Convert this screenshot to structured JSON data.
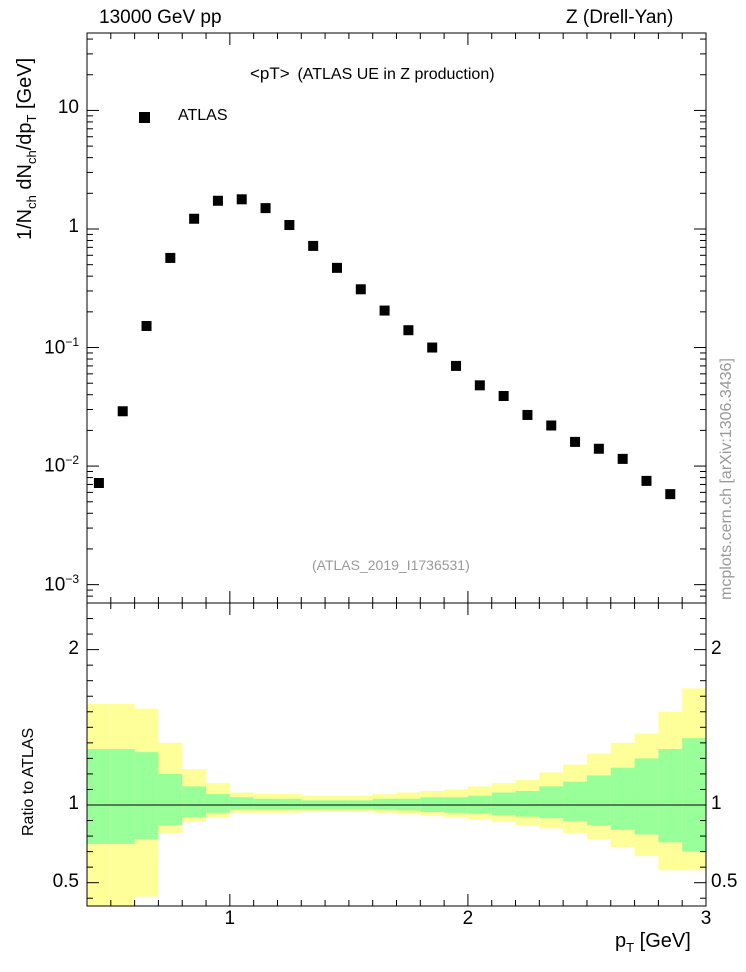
{
  "header": {
    "left": "13000 GeV pp",
    "right": "Z (Drell-Yan)"
  },
  "watermark": "mcplots.cern.ch [arXiv:1306.3436]",
  "chart_data": [
    {
      "type": "scatter",
      "panel": "main",
      "title_main": "<pT>",
      "title_sub": "(ATLAS UE in Z production)",
      "analysis_label": "(ATLAS_2019_I1736531)",
      "ylabel": "1/N_ch dN_ch/dp_T [GeV]",
      "yscale": "log",
      "ylim": [
        0.0007,
        45
      ],
      "xlim": [
        0.4,
        3.0
      ],
      "x_ticks": [
        1,
        2,
        3
      ],
      "y_ticks": [
        {
          "value": 0.001,
          "base": "10",
          "exp": "−3"
        },
        {
          "value": 0.01,
          "base": "10",
          "exp": "−2"
        },
        {
          "value": 0.1,
          "base": "10",
          "exp": "−1"
        },
        {
          "value": 1,
          "base": "1",
          "exp": ""
        },
        {
          "value": 10,
          "base": "10",
          "exp": ""
        }
      ],
      "legend": [
        {
          "name": "ATLAS",
          "marker": "square",
          "color": "#000000"
        }
      ],
      "legend_position": "top-left",
      "series": [
        {
          "name": "ATLAS",
          "x": [
            0.45,
            0.55,
            0.65,
            0.75,
            0.85,
            0.95,
            1.05,
            1.15,
            1.25,
            1.35,
            1.45,
            1.55,
            1.65,
            1.75,
            1.85,
            1.95,
            2.05,
            2.15,
            2.25,
            2.35,
            2.45,
            2.55,
            2.65,
            2.75,
            2.85
          ],
          "y": [
            0.0072,
            0.029,
            0.152,
            0.57,
            1.22,
            1.73,
            1.78,
            1.5,
            1.08,
            0.72,
            0.47,
            0.31,
            0.205,
            0.14,
            0.1,
            0.07,
            0.048,
            0.039,
            0.027,
            0.022,
            0.016,
            0.014,
            0.0115,
            0.0075,
            0.0058
          ]
        }
      ]
    },
    {
      "type": "area",
      "panel": "ratio",
      "ylabel": "Ratio to ATLAS",
      "xlabel": "p_T [GeV]",
      "ylim": [
        0.35,
        2.3
      ],
      "xlim": [
        0.4,
        3.0
      ],
      "x_ticks": [
        1,
        2,
        3
      ],
      "y_ticks": [
        0.5,
        1,
        2
      ],
      "reference_line": 1,
      "band_colors": {
        "inner": "#99ff99",
        "outer": "#ffff99"
      },
      "bin_edges": [
        0.4,
        0.5,
        0.6,
        0.7,
        0.8,
        0.9,
        1.0,
        1.1,
        1.2,
        1.3,
        1.4,
        1.5,
        1.6,
        1.7,
        1.8,
        1.9,
        2.0,
        2.1,
        2.2,
        2.3,
        2.4,
        2.5,
        2.6,
        2.7,
        2.8,
        2.9,
        3.0
      ],
      "outer_band": {
        "low": [
          0.35,
          0.35,
          0.41,
          0.82,
          0.89,
          0.92,
          0.95,
          0.95,
          0.95,
          0.955,
          0.955,
          0.955,
          0.95,
          0.94,
          0.93,
          0.92,
          0.91,
          0.89,
          0.87,
          0.85,
          0.82,
          0.78,
          0.73,
          0.67,
          0.58,
          0.58
        ],
        "high": [
          1.65,
          1.65,
          1.62,
          1.4,
          1.23,
          1.14,
          1.08,
          1.07,
          1.07,
          1.06,
          1.06,
          1.06,
          1.07,
          1.08,
          1.09,
          1.1,
          1.12,
          1.14,
          1.16,
          1.21,
          1.26,
          1.33,
          1.4,
          1.46,
          1.6,
          1.75
        ]
      },
      "inner_band": {
        "low": [
          0.75,
          0.75,
          0.78,
          0.87,
          0.92,
          0.95,
          0.97,
          0.97,
          0.97,
          0.975,
          0.975,
          0.975,
          0.97,
          0.965,
          0.955,
          0.95,
          0.945,
          0.935,
          0.925,
          0.915,
          0.895,
          0.87,
          0.84,
          0.81,
          0.76,
          0.7
        ],
        "high": [
          1.36,
          1.36,
          1.34,
          1.2,
          1.12,
          1.07,
          1.05,
          1.04,
          1.04,
          1.03,
          1.03,
          1.03,
          1.04,
          1.04,
          1.05,
          1.05,
          1.06,
          1.08,
          1.09,
          1.12,
          1.15,
          1.19,
          1.24,
          1.3,
          1.36,
          1.43
        ]
      }
    }
  ]
}
